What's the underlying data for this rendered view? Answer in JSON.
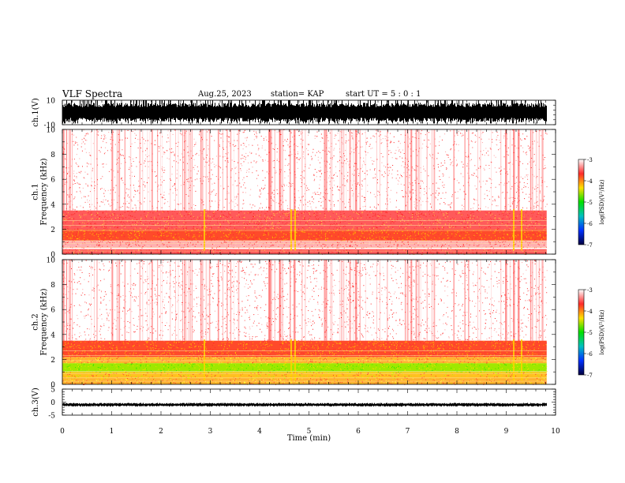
{
  "header": {
    "title": "VLF Spectra",
    "date": "Aug.25, 2023",
    "station": "station= KAP",
    "start_ut": "start  UT =   5 : 0  : 1"
  },
  "chart_data": [
    {
      "type": "line",
      "panel": "ch1-waveform",
      "ylabel": "ch.1(V)",
      "ylim": [
        -10,
        10
      ],
      "ytick_labels": [
        "10",
        "-10"
      ],
      "xlim": [
        0,
        10
      ],
      "data_extent_min": 9.82,
      "envelope": {
        "typical_min": -8,
        "typical_max": 8,
        "peak_max": 10,
        "peak_min": -10
      },
      "color": "#000000"
    },
    {
      "type": "heatmap",
      "panel": "ch1-spectrogram",
      "ylabel": "ch.1\nFrequency (kHz)",
      "ylim": [
        0,
        10
      ],
      "ytick_labels": [
        "0",
        "2",
        "4",
        "6",
        "8",
        "10"
      ],
      "xlim": [
        0,
        10
      ],
      "data_extent_min": 9.82,
      "bands": [
        {
          "f_min": 0.0,
          "f_max": 0.4,
          "level": "red-dense"
        },
        {
          "f_min": 0.5,
          "f_max": 1.1,
          "level": "red"
        },
        {
          "f_min": 1.1,
          "f_max": 2.0,
          "level": "red-yellow"
        },
        {
          "f_min": 2.0,
          "f_max": 3.5,
          "level": "red-dense"
        },
        {
          "f_min": 3.5,
          "f_max": 10.0,
          "level": "sparse-red"
        }
      ],
      "colorbar": {
        "label": "log(PSD)(V²/Hz)",
        "range": [
          -7,
          -3
        ],
        "tick_labels": [
          "-3",
          "-4",
          "-5",
          "-6",
          "-7"
        ],
        "colors": [
          "#ffffff",
          "#ff2a2a",
          "#ffe000",
          "#00e000",
          "#00c0c0",
          "#0030ff",
          "#000040"
        ]
      }
    },
    {
      "type": "heatmap",
      "panel": "ch2-spectrogram",
      "ylabel": "ch.2\nFrequency (kHz)",
      "ylim": [
        0,
        10
      ],
      "ytick_labels": [
        "0",
        "2",
        "4",
        "6",
        "8",
        "10"
      ],
      "xlim": [
        0,
        10
      ],
      "data_extent_min": 9.82,
      "bands": [
        {
          "f_min": 0.0,
          "f_max": 0.5,
          "level": "yellow"
        },
        {
          "f_min": 0.5,
          "f_max": 1.0,
          "level": "yellow-green"
        },
        {
          "f_min": 1.0,
          "f_max": 1.7,
          "level": "green"
        },
        {
          "f_min": 1.7,
          "f_max": 2.2,
          "level": "yellow"
        },
        {
          "f_min": 2.2,
          "f_max": 3.5,
          "level": "red-yellow"
        },
        {
          "f_min": 3.5,
          "f_max": 10.0,
          "level": "sparse-red"
        }
      ],
      "colorbar": {
        "label": "log(PSD)(V²/Hz)",
        "range": [
          -7,
          -3
        ],
        "tick_labels": [
          "-3",
          "-4",
          "-5",
          "-6",
          "-7"
        ],
        "colors": [
          "#ffffff",
          "#ff2a2a",
          "#ffe000",
          "#00e000",
          "#00c0c0",
          "#0030ff",
          "#000040"
        ]
      }
    },
    {
      "type": "line",
      "panel": "ch3-waveform",
      "ylabel": "ch.3(V)",
      "ylim": [
        -5,
        5
      ],
      "ytick_labels": [
        "5",
        "0",
        "-5"
      ],
      "xlim": [
        0,
        10
      ],
      "data_extent_min": 9.82,
      "envelope": {
        "typical_min": -1.5,
        "typical_max": -0.5
      },
      "xlabel": "Time (min)",
      "xtick_labels": [
        "0",
        "1",
        "2",
        "3",
        "4",
        "5",
        "6",
        "7",
        "8",
        "9",
        "10"
      ],
      "color": "#000000"
    }
  ]
}
